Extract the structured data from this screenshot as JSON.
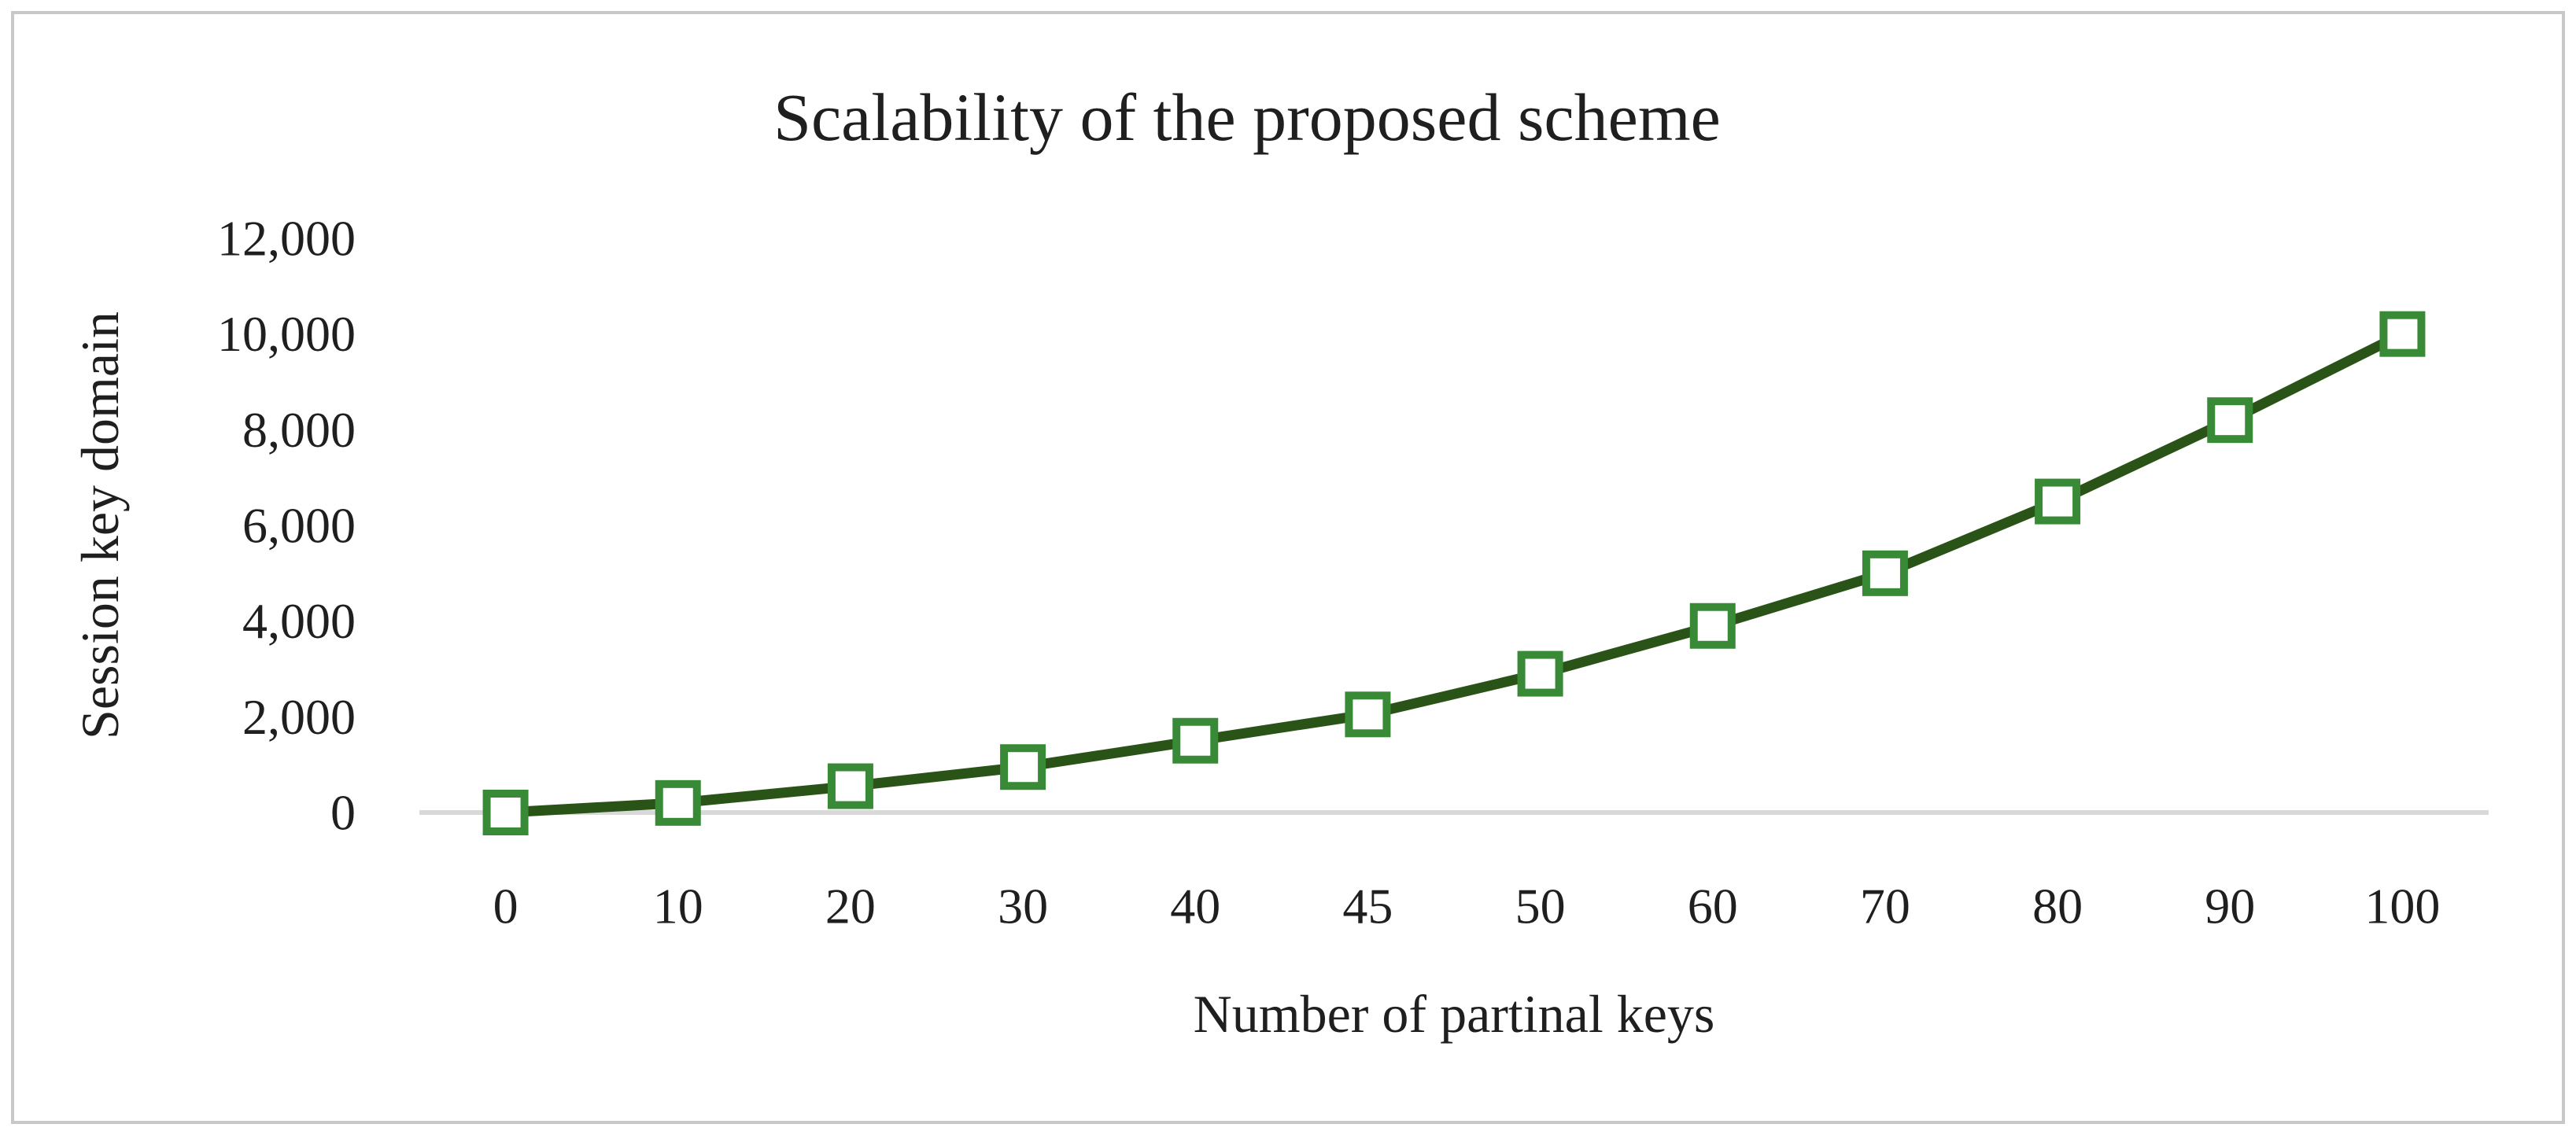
{
  "chart_data": {
    "type": "line",
    "title": "Scalability of the proposed scheme",
    "xlabel": "Number of partinal keys",
    "ylabel": "Session key domain",
    "categories": [
      "0",
      "10",
      "20",
      "30",
      "40",
      "45",
      "50",
      "60",
      "70",
      "80",
      "90",
      "100"
    ],
    "series": [
      {
        "name": "Session key domain",
        "values": [
          0,
          200,
          550,
          950,
          1500,
          2050,
          2900,
          3900,
          5000,
          6500,
          8200,
          10000
        ]
      }
    ],
    "y_ticks": [
      "0",
      "2,000",
      "4,000",
      "6,000",
      "8,000",
      "10,000",
      "12,000"
    ],
    "y_tick_values": [
      0,
      2000,
      4000,
      6000,
      8000,
      10000,
      12000
    ],
    "ylim": [
      0,
      12000
    ],
    "grid": false,
    "legend": "none",
    "marker_shape": "hollow-square",
    "colors": {
      "line": "#2a5317",
      "marker_border": "#388a36",
      "marker_fill": "#ffffff",
      "axis_line": "#d9d9d9",
      "text": "#1f1f1f",
      "frame_border": "#c8c8c8",
      "background": "#ffffff"
    }
  }
}
